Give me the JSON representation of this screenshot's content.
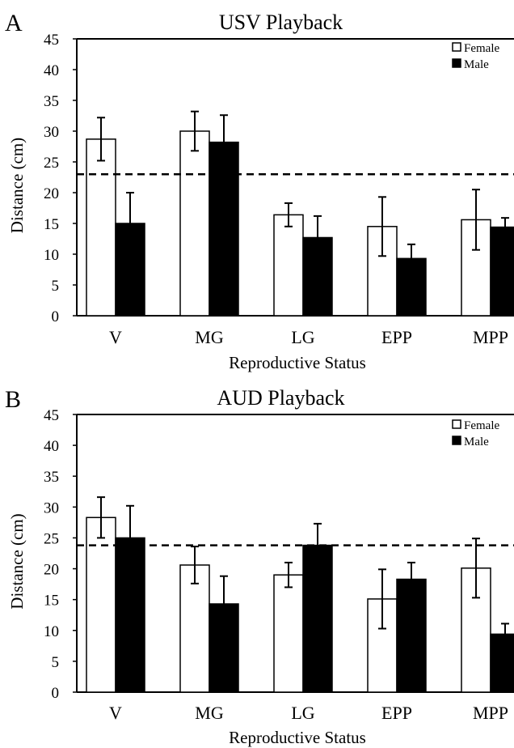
{
  "chart_data": [
    {
      "type": "bar",
      "panel": "A",
      "title": "USV Playback",
      "xlabel": "Reproductive Status",
      "ylabel": "Distance (cm)",
      "categories": [
        "V",
        "MG",
        "LG",
        "EPP",
        "MPP"
      ],
      "ylim": [
        0,
        45
      ],
      "yticks": [
        0,
        5,
        10,
        15,
        20,
        25,
        30,
        35,
        40,
        45
      ],
      "series": [
        {
          "name": "Female",
          "color": "#ffffff",
          "values": [
            28.7,
            30.0,
            16.4,
            14.5,
            15.6
          ],
          "errors": [
            3.5,
            3.2,
            1.9,
            4.8,
            4.9
          ]
        },
        {
          "name": "Male",
          "color": "#000000",
          "values": [
            15.0,
            28.2,
            12.7,
            9.3,
            14.4
          ],
          "errors": [
            5.0,
            4.4,
            3.5,
            2.3,
            1.5
          ]
        }
      ],
      "reference_line": 23.0,
      "legend_position": "top-right"
    },
    {
      "type": "bar",
      "panel": "B",
      "title": "AUD Playback",
      "xlabel": "Reproductive Status",
      "ylabel": "Distance (cm)",
      "categories": [
        "V",
        "MG",
        "LG",
        "EPP",
        "MPP"
      ],
      "ylim": [
        0,
        45
      ],
      "yticks": [
        0,
        5,
        10,
        15,
        20,
        25,
        30,
        35,
        40,
        45
      ],
      "series": [
        {
          "name": "Female",
          "color": "#ffffff",
          "values": [
            28.3,
            20.6,
            19.0,
            15.1,
            20.1
          ],
          "errors": [
            3.3,
            3.0,
            2.0,
            4.8,
            4.8
          ]
        },
        {
          "name": "Male",
          "color": "#000000",
          "values": [
            25.0,
            14.3,
            23.8,
            18.3,
            9.4
          ],
          "errors": [
            5.2,
            4.5,
            3.5,
            2.7,
            1.7
          ]
        }
      ],
      "reference_line": 23.8,
      "legend_position": "top-right"
    }
  ]
}
